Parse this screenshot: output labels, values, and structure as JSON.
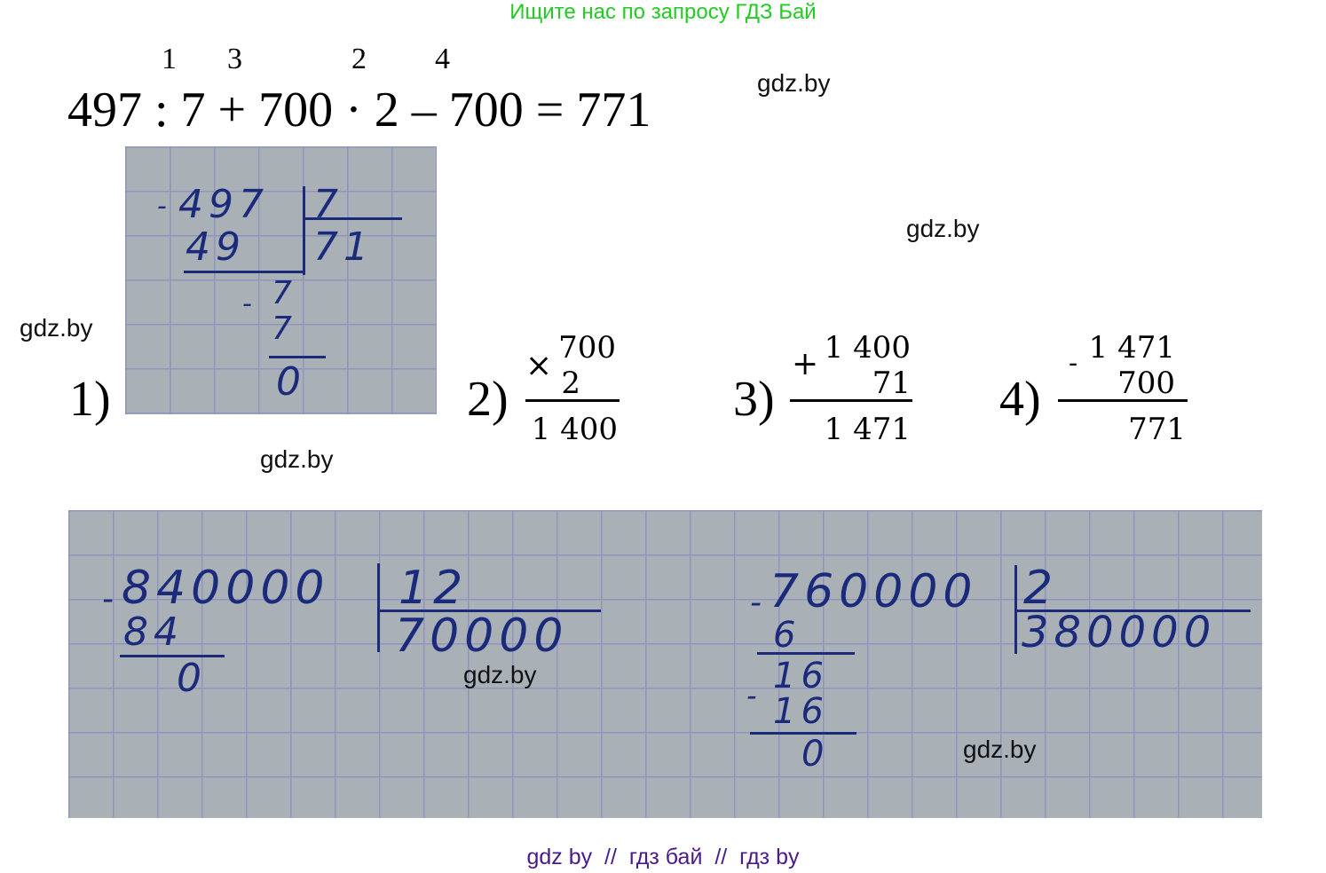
{
  "header": "Ищите нас по запросу ГДЗ Бай",
  "order": [
    "1",
    "3",
    "2",
    "4"
  ],
  "equation": "497 : 7 + 700 · 2 – 700 = 771",
  "watermark": "gdz.by",
  "steps": {
    "s1": {
      "label": "1)",
      "dividend": "497",
      "divisor": "7",
      "sub1": "49",
      "quotient": "71",
      "rem1": "7",
      "sub2": "7",
      "rem2": "0",
      "minus": "-"
    },
    "s2": {
      "label": "2)",
      "op": "×",
      "a": "700",
      "b": "2",
      "result": "1 400"
    },
    "s3": {
      "label": "3)",
      "op": "+",
      "a": "1 400",
      "b": "71",
      "result": "1 471"
    },
    "s4": {
      "label": "4)",
      "op": "-",
      "a": "1 471",
      "b": "700",
      "result": "771"
    }
  },
  "div_a": {
    "dividend": "840000",
    "divisor": "12",
    "sub": "84",
    "quotient": "70000",
    "rem": "0",
    "minus": "-"
  },
  "div_b": {
    "dividend": "760000",
    "divisor": "2",
    "sub1": "6",
    "rem1": "16",
    "sub2": "16",
    "quotient": "380000",
    "rem2": "0",
    "minus": "-"
  },
  "footer": "gdz by  //  гдз бай  //  гдз by",
  "colors": {
    "header": "#22cc22",
    "footer": "#4a1a8a",
    "ink": "#1b2a7a"
  }
}
